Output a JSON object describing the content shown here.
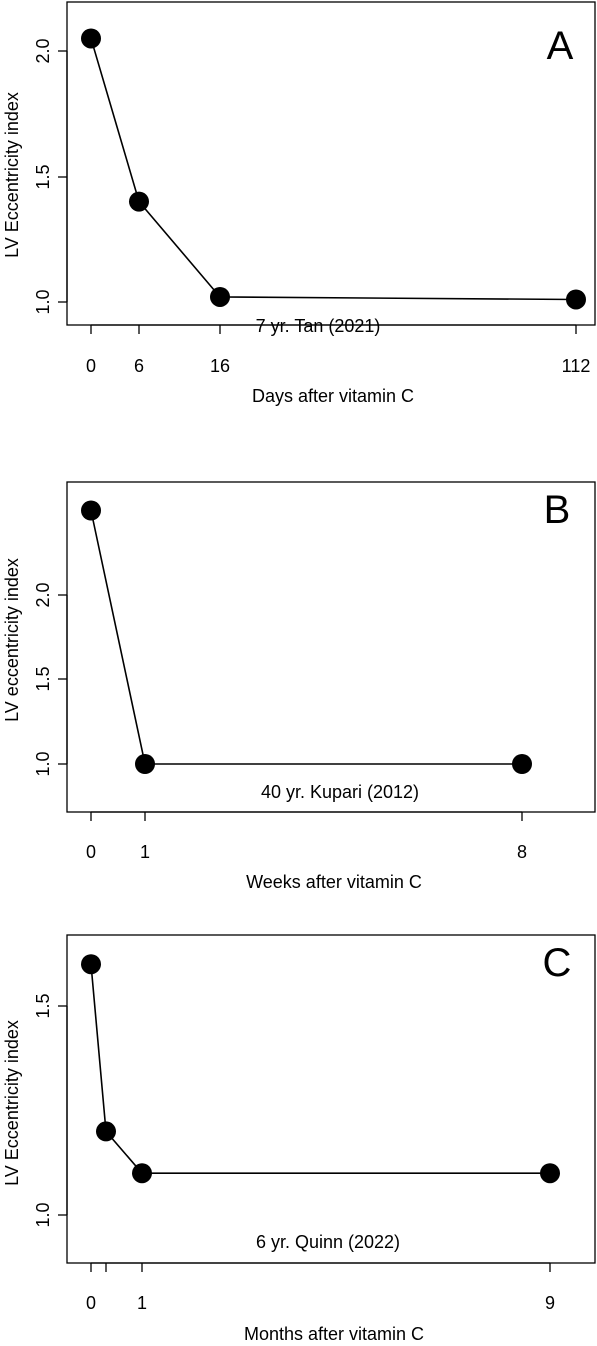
{
  "chart_data": [
    {
      "type": "line",
      "panel": "A",
      "annotation": "7 yr. Tan (2021)",
      "xlabel": "Days after vitamin C",
      "ylabel": "LV Eccentricity index",
      "x_ticks": [
        0,
        6,
        16,
        112
      ],
      "x_tick_labels": [
        "0",
        "6",
        "16",
        "112"
      ],
      "y_ticks": [
        1.0,
        1.5,
        2.0
      ],
      "y_tick_labels": [
        "1.0",
        "1.5",
        "2.0"
      ],
      "axis_scale": "nonlinear categorical spacing on x",
      "x": [
        0,
        6,
        16,
        112
      ],
      "y": [
        2.05,
        1.4,
        1.02,
        1.01
      ],
      "grid": false,
      "legend": "none"
    },
    {
      "type": "line",
      "panel": "B",
      "annotation": "40 yr. Kupari (2012)",
      "xlabel": "Weeks after vitamin C",
      "ylabel": "LV eccentricity index",
      "x_ticks": [
        0,
        1,
        8
      ],
      "x_tick_labels": [
        "0",
        "1",
        "8"
      ],
      "y_ticks": [
        1.0,
        1.5,
        2.0
      ],
      "y_tick_labels": [
        "1.0",
        "1.5",
        "2.0"
      ],
      "x": [
        0,
        1,
        8
      ],
      "y": [
        2.5,
        1.0,
        1.0
      ],
      "grid": false,
      "legend": "none"
    },
    {
      "type": "line",
      "panel": "C",
      "annotation": "6 yr. Quinn (2022)",
      "xlabel": "Months after vitamin C",
      "ylabel": "LV Eccentricity index",
      "x_ticks": [
        0,
        0.25,
        1,
        9
      ],
      "x_tick_labels": [
        "0",
        "",
        "1",
        "9"
      ],
      "y_ticks": [
        1.0,
        1.5
      ],
      "y_tick_labels": [
        "1.0",
        "1.5"
      ],
      "x": [
        0,
        0.25,
        1,
        9
      ],
      "y": [
        1.6,
        1.2,
        1.1,
        1.1
      ],
      "grid": false,
      "legend": "none"
    }
  ]
}
